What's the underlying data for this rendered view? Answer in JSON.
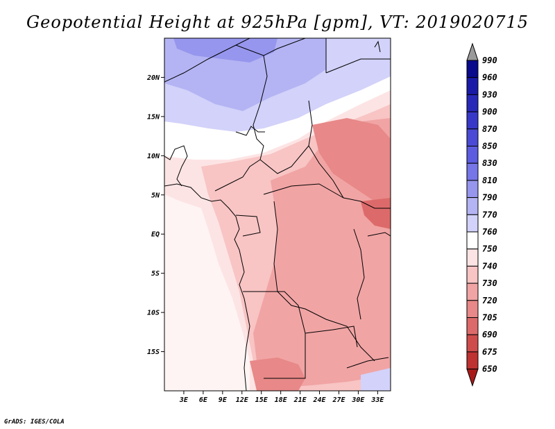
{
  "title": "Geopotential Height at 925hPa [gpm], VT: 2019020715",
  "footer": "GrADS: IGES/COLA",
  "map": {
    "projection": "latlon",
    "lon_range": [
      0,
      35
    ],
    "lat_range": [
      -20,
      25
    ],
    "lat_labels": [
      "20N",
      "15N",
      "10N",
      "5N",
      "EQ",
      "5S",
      "10S",
      "15S"
    ],
    "lat_values": [
      20,
      15,
      10,
      5,
      0,
      -5,
      -10,
      -15
    ],
    "lon_labels": [
      "3E",
      "6E",
      "9E",
      "12E",
      "15E",
      "18E",
      "21E",
      "24E",
      "27E",
      "30E",
      "33E"
    ],
    "lon_values": [
      3,
      6,
      9,
      12,
      15,
      18,
      21,
      24,
      27,
      30,
      33
    ]
  },
  "colorbar": {
    "levels": [
      "990",
      "960",
      "930",
      "900",
      "870",
      "850",
      "830",
      "810",
      "790",
      "770",
      "760",
      "750",
      "740",
      "730",
      "720",
      "705",
      "690",
      "675",
      "650"
    ],
    "colors": [
      "#0a0a8c",
      "#1a1aa8",
      "#2828b8",
      "#3838c8",
      "#4a4ad6",
      "#5c5ce0",
      "#7676e8",
      "#9696ee",
      "#b4b4f4",
      "#d2d2fa",
      "#ffffff",
      "#fde4e4",
      "#f8c4c4",
      "#f1a4a4",
      "#e88888",
      "#dd6a6a",
      "#cf4c4c",
      "#bf3232",
      "#a81a1a"
    ],
    "top_arrow_color": "#9a9a9a",
    "bottom_arrow_color": "#a81a1a"
  }
}
